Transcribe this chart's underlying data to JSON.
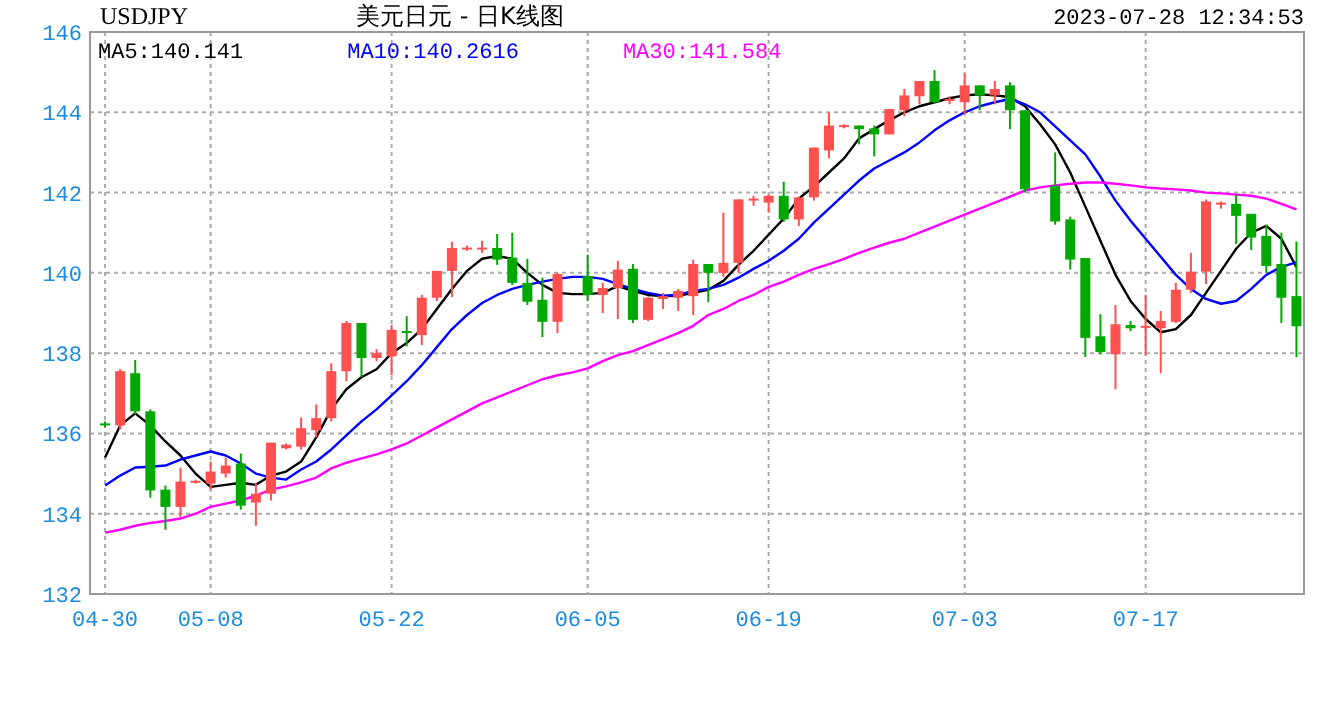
{
  "chart_data": {
    "type": "candlestick",
    "title": "美元日元 - 日K线图",
    "subtitle": "USDJPY",
    "annotations": [
      "2023-07-28 12:34:53"
    ],
    "categories": [
      "04-30",
      null,
      null,
      null,
      null,
      null,
      null,
      "05-08",
      null,
      null,
      null,
      null,
      null,
      null,
      null,
      null,
      null,
      null,
      null,
      "05-22",
      null,
      null,
      null,
      null,
      null,
      null,
      null,
      null,
      null,
      null,
      null,
      null,
      "06-05",
      null,
      null,
      null,
      null,
      null,
      null,
      null,
      null,
      null,
      null,
      null,
      "06-19",
      null,
      null,
      null,
      null,
      null,
      null,
      null,
      null,
      null,
      null,
      null,
      null,
      "07-03",
      null,
      null,
      null,
      null,
      null,
      null,
      null,
      null,
      null,
      null,
      null,
      "07-17",
      null,
      null,
      null,
      null,
      null,
      null,
      null,
      null,
      null,
      null
    ],
    "ohlc": [
      [
        136.25,
        136.3,
        136.15,
        136.2
      ],
      [
        136.2,
        137.6,
        136.1,
        137.55
      ],
      [
        137.5,
        137.83,
        136.47,
        136.55
      ],
      [
        136.55,
        136.6,
        134.4,
        134.58
      ],
      [
        134.6,
        134.7,
        133.6,
        134.17
      ],
      [
        134.17,
        135.15,
        133.92,
        134.8
      ],
      [
        134.78,
        134.85,
        134.75,
        134.82
      ],
      [
        134.75,
        135.3,
        134.6,
        135.05
      ],
      [
        135.0,
        135.4,
        134.9,
        135.2
      ],
      [
        135.25,
        135.5,
        134.1,
        134.2
      ],
      [
        134.28,
        134.75,
        133.7,
        134.5
      ],
      [
        134.5,
        135.77,
        134.33,
        135.77
      ],
      [
        135.63,
        135.75,
        135.6,
        135.72
      ],
      [
        135.67,
        136.4,
        135.6,
        136.13
      ],
      [
        136.08,
        136.72,
        135.9,
        136.38
      ],
      [
        136.38,
        137.75,
        136.3,
        137.55
      ],
      [
        137.55,
        138.8,
        137.3,
        138.75
      ],
      [
        138.75,
        138.75,
        137.4,
        137.88
      ],
      [
        137.88,
        138.1,
        137.8,
        138.0
      ],
      [
        137.92,
        138.7,
        137.45,
        138.58
      ],
      [
        138.55,
        138.92,
        138.17,
        138.5
      ],
      [
        138.45,
        139.45,
        138.2,
        139.38
      ],
      [
        139.38,
        140.05,
        139.3,
        140.05
      ],
      [
        140.05,
        140.77,
        139.4,
        140.62
      ],
      [
        140.6,
        140.68,
        140.55,
        140.63
      ],
      [
        140.6,
        140.8,
        140.5,
        140.63
      ],
      [
        140.62,
        140.97,
        140.2,
        140.33
      ],
      [
        140.38,
        141.0,
        139.7,
        139.75
      ],
      [
        139.75,
        140.35,
        139.2,
        139.28
      ],
      [
        139.33,
        139.88,
        138.4,
        138.78
      ],
      [
        138.78,
        140.0,
        138.5,
        139.97
      ],
      null,
      [
        139.92,
        140.45,
        139.3,
        139.45
      ],
      [
        139.45,
        139.75,
        139.0,
        139.62
      ],
      [
        139.62,
        140.3,
        138.85,
        140.08
      ],
      [
        140.1,
        140.22,
        138.75,
        138.83
      ],
      [
        138.83,
        139.4,
        138.8,
        139.38
      ],
      [
        139.35,
        139.5,
        139.1,
        139.42
      ],
      [
        139.38,
        139.6,
        139.05,
        139.55
      ],
      [
        139.42,
        140.33,
        138.95,
        140.22
      ],
      [
        140.22,
        140.22,
        139.27,
        140.0
      ],
      [
        140.0,
        141.5,
        139.9,
        140.25
      ],
      [
        140.25,
        141.83,
        140.0,
        141.83
      ],
      [
        141.8,
        141.92,
        141.67,
        141.85
      ],
      [
        141.75,
        141.95,
        141.5,
        141.92
      ],
      [
        141.92,
        142.27,
        141.27,
        141.33
      ],
      [
        141.33,
        141.9,
        141.17,
        141.88
      ],
      [
        141.88,
        143.12,
        141.8,
        143.12
      ],
      [
        143.05,
        144.0,
        142.85,
        143.67
      ],
      [
        143.65,
        143.7,
        143.6,
        143.68
      ],
      [
        143.67,
        143.67,
        143.2,
        143.58
      ],
      [
        143.6,
        143.67,
        142.9,
        143.45
      ],
      [
        143.45,
        144.08,
        143.45,
        144.08
      ],
      [
        144.05,
        144.58,
        143.9,
        144.42
      ],
      [
        144.4,
        144.78,
        144.2,
        144.78
      ],
      [
        144.78,
        145.05,
        144.22,
        144.25
      ],
      [
        144.28,
        144.4,
        144.2,
        144.33
      ],
      [
        144.25,
        144.97,
        143.95,
        144.67
      ],
      [
        144.67,
        144.67,
        144.05,
        144.42
      ],
      [
        144.42,
        144.78,
        144.2,
        144.58
      ],
      [
        144.67,
        144.75,
        143.58,
        144.05
      ],
      [
        144.05,
        144.05,
        142.0,
        142.08
      ],
      null,
      [
        142.17,
        143.0,
        141.2,
        141.28
      ],
      [
        141.33,
        141.4,
        140.08,
        140.33
      ],
      [
        140.37,
        140.37,
        137.9,
        138.38
      ],
      [
        138.42,
        138.97,
        137.97,
        138.03
      ],
      [
        137.97,
        139.2,
        137.1,
        138.72
      ],
      [
        138.7,
        138.8,
        138.55,
        138.62
      ],
      [
        138.65,
        139.45,
        137.95,
        138.68
      ],
      [
        138.62,
        139.05,
        137.5,
        138.8
      ],
      [
        138.78,
        139.75,
        138.75,
        139.58
      ],
      [
        139.58,
        140.5,
        139.5,
        140.03
      ],
      [
        140.03,
        141.83,
        139.72,
        141.78
      ],
      [
        141.7,
        141.78,
        141.6,
        141.75
      ],
      [
        141.72,
        141.95,
        140.72,
        141.42
      ],
      [
        141.47,
        141.47,
        140.57,
        140.88
      ],
      [
        140.92,
        141.2,
        140.0,
        140.17
      ],
      [
        140.22,
        141.0,
        138.75,
        139.38
      ],
      [
        139.42,
        140.78,
        137.9,
        138.67
      ]
    ],
    "colors": [
      "#00a800",
      "#ff5050",
      "#00a800",
      "#00a800",
      "#00a800",
      "#ff5050",
      "#ff5050",
      "#ff5050",
      "#ff5050",
      "#00a800",
      "#ff5050",
      "#ff5050",
      "#ff5050",
      "#ff5050",
      "#ff5050",
      "#ff5050",
      "#ff5050",
      "#00a800",
      "#ff5050",
      "#ff5050",
      "#00a800",
      "#ff5050",
      "#ff5050",
      "#ff5050",
      "#ff5050",
      "#ff5050",
      "#00a800",
      "#00a800",
      "#00a800",
      "#00a800",
      "#ff5050",
      null,
      "#00a800",
      "#ff5050",
      "#ff5050",
      "#00a800",
      "#ff5050",
      "#ff5050",
      "#ff5050",
      "#ff5050",
      "#00a800",
      "#ff5050",
      "#ff5050",
      "#ff5050",
      "#ff5050",
      "#00a800",
      "#ff5050",
      "#ff5050",
      "#ff5050",
      "#ff5050",
      "#00a800",
      "#00a800",
      "#ff5050",
      "#ff5050",
      "#ff5050",
      "#00a800",
      "#ff5050",
      "#ff5050",
      "#00a800",
      "#ff5050",
      "#00a800",
      "#00a800",
      null,
      "#00a800",
      "#00a800",
      "#00a800",
      "#00a800",
      "#ff5050",
      "#00a800",
      "#ff5050",
      "#ff5050",
      "#ff5050",
      "#ff5050",
      "#ff5050",
      "#ff5050",
      "#00a800",
      "#00a800",
      "#00a800",
      "#00a800",
      "#00a800"
    ],
    "series": [
      {
        "name": "MA5:140.141",
        "type": "line",
        "color": "#000000",
        "values": [
          135.4,
          136.2,
          136.5,
          136.2,
          135.8,
          135.45,
          135.0,
          134.67,
          134.72,
          134.77,
          134.72,
          134.95,
          135.05,
          135.3,
          135.9,
          136.6,
          137.1,
          137.4,
          137.6,
          138.0,
          138.25,
          138.6,
          139.1,
          139.6,
          140.05,
          140.35,
          140.42,
          140.35,
          140.0,
          139.7,
          139.5,
          139.47,
          139.47,
          139.5,
          139.67,
          139.55,
          139.45,
          139.42,
          139.43,
          139.5,
          139.58,
          139.8,
          140.2,
          140.55,
          140.95,
          141.35,
          141.85,
          142.15,
          142.5,
          142.85,
          143.35,
          143.58,
          143.8,
          144.0,
          144.15,
          144.25,
          144.35,
          144.42,
          144.45,
          144.42,
          144.38,
          144.15,
          143.7,
          143.2,
          142.5,
          141.65,
          140.8,
          139.95,
          139.3,
          138.85,
          138.52,
          138.6,
          138.95,
          139.5,
          140.05,
          140.6,
          141.0,
          141.17,
          140.85,
          140.14
        ]
      },
      {
        "name": "MA10:140.2616",
        "type": "line",
        "color": "#0000ff",
        "values": [
          134.7,
          134.95,
          135.15,
          135.17,
          135.2,
          135.35,
          135.45,
          135.55,
          135.45,
          135.25,
          135.0,
          134.9,
          134.85,
          135.1,
          135.3,
          135.6,
          135.95,
          136.3,
          136.6,
          136.95,
          137.3,
          137.7,
          138.15,
          138.6,
          138.95,
          139.25,
          139.45,
          139.6,
          139.7,
          139.78,
          139.85,
          139.9,
          139.9,
          139.85,
          139.72,
          139.6,
          139.5,
          139.43,
          139.45,
          139.55,
          139.6,
          139.7,
          139.88,
          140.1,
          140.3,
          140.55,
          140.85,
          141.25,
          141.6,
          141.95,
          142.3,
          142.6,
          142.8,
          143.0,
          143.25,
          143.55,
          143.8,
          144.0,
          144.15,
          144.25,
          144.33,
          144.2,
          144.0,
          143.65,
          143.3,
          142.95,
          142.4,
          141.8,
          141.3,
          140.85,
          140.4,
          139.95,
          139.6,
          139.35,
          139.23,
          139.3,
          139.6,
          139.95,
          140.15,
          140.26
        ]
      },
      {
        "name": "MA30:141.584",
        "type": "line",
        "color": "#ff00ff",
        "values": [
          133.53,
          133.6,
          133.7,
          133.77,
          133.82,
          133.88,
          134.0,
          134.17,
          134.25,
          134.33,
          134.45,
          134.6,
          134.68,
          134.78,
          134.9,
          135.13,
          135.27,
          135.38,
          135.48,
          135.6,
          135.75,
          135.95,
          136.15,
          136.35,
          136.55,
          136.75,
          136.9,
          137.05,
          137.2,
          137.35,
          137.45,
          137.52,
          137.62,
          137.8,
          137.95,
          138.05,
          138.2,
          138.35,
          138.5,
          138.68,
          138.95,
          139.1,
          139.3,
          139.45,
          139.65,
          139.78,
          139.95,
          140.1,
          140.22,
          140.35,
          140.5,
          140.63,
          140.75,
          140.85,
          141.0,
          141.15,
          141.3,
          141.45,
          141.6,
          141.75,
          141.9,
          142.05,
          142.13,
          142.18,
          142.22,
          142.25,
          142.25,
          142.22,
          142.18,
          142.13,
          142.1,
          142.08,
          142.05,
          142.0,
          141.98,
          141.95,
          141.92,
          141.85,
          141.72,
          141.58
        ]
      }
    ],
    "ylim": [
      132,
      146
    ],
    "yticks": [
      132,
      134,
      136,
      138,
      140,
      142,
      144,
      146
    ],
    "grid": true,
    "legend": "top left"
  }
}
